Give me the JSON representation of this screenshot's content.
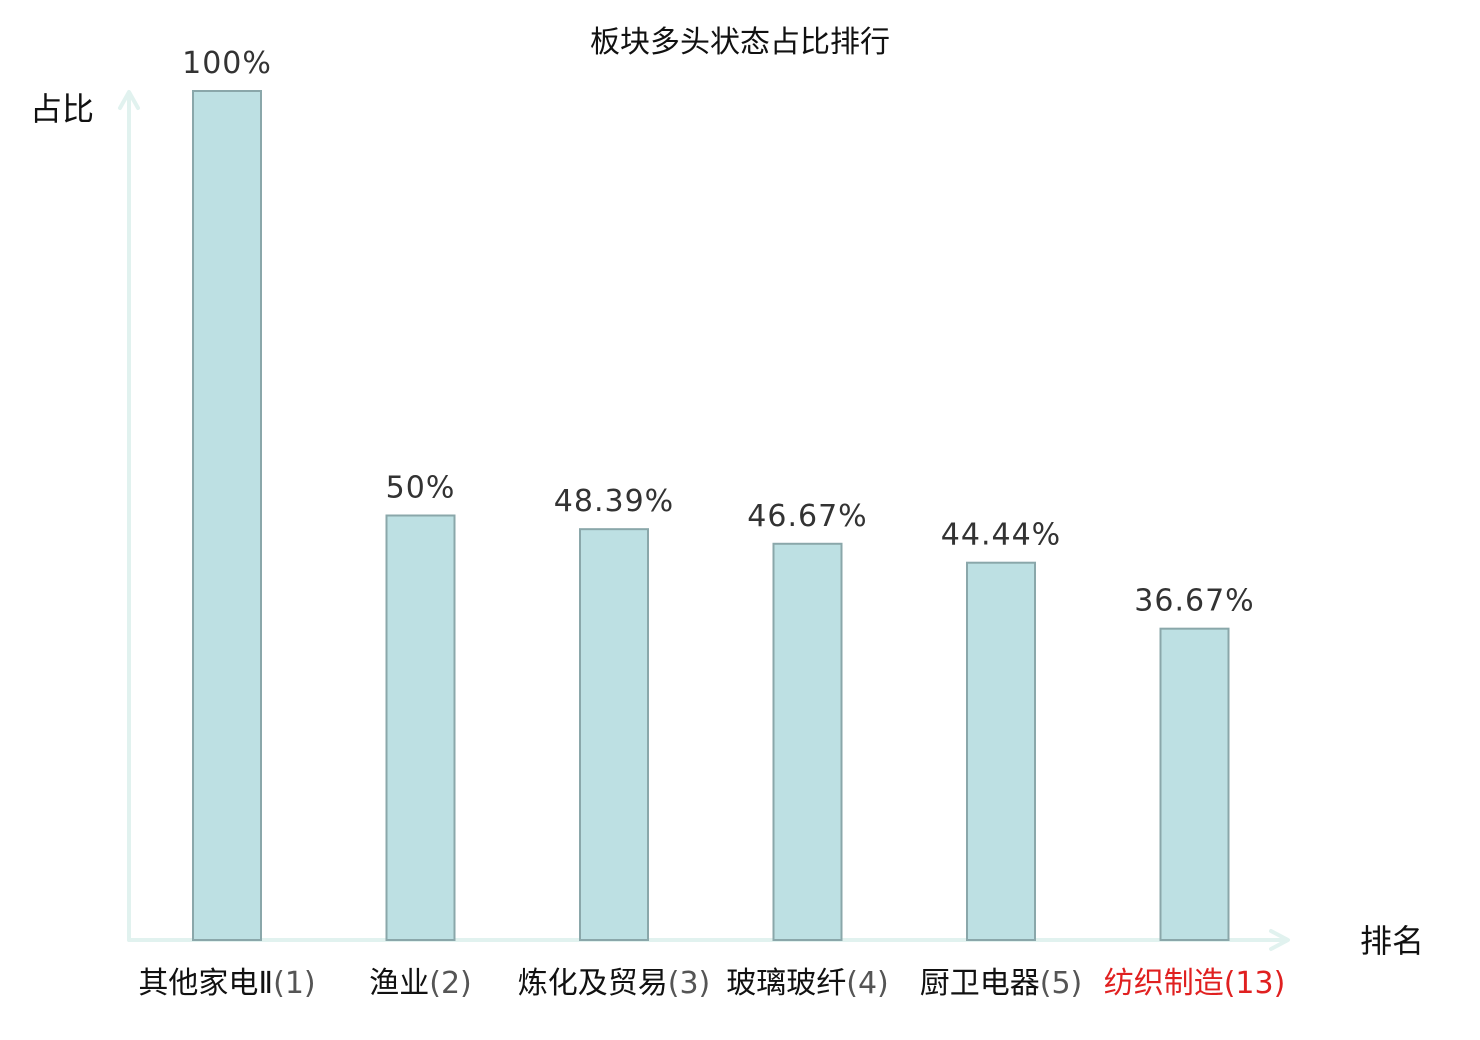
{
  "chart_data": {
    "type": "bar",
    "title": "板块多头状态占比排行",
    "ylabel": "占比",
    "xlabel": "排名",
    "ylim": [
      0,
      100
    ],
    "grid": false,
    "legend": "none",
    "categories": [
      {
        "name": "其他家电Ⅱ",
        "rank": "(1)",
        "highlight": false
      },
      {
        "name": "渔业",
        "rank": "(2)",
        "highlight": false
      },
      {
        "name": "炼化及贸易",
        "rank": "(3)",
        "highlight": false
      },
      {
        "name": "玻璃玻纤",
        "rank": "(4)",
        "highlight": false
      },
      {
        "name": "厨卫电器",
        "rank": "(5)",
        "highlight": false
      },
      {
        "name": "纺织制造",
        "rank": "(13)",
        "highlight": true
      }
    ],
    "values": [
      100,
      50,
      48.39,
      46.67,
      44.44,
      36.67
    ],
    "value_labels": [
      "100%",
      "50%",
      "48.39%",
      "46.67%",
      "44.44%",
      "36.67%"
    ]
  },
  "colors": {
    "bar_fill": "#bde0e3",
    "bar_stroke": "#8aa7aa",
    "axis": "#e1f2ef",
    "highlight_text": "#e02020"
  }
}
